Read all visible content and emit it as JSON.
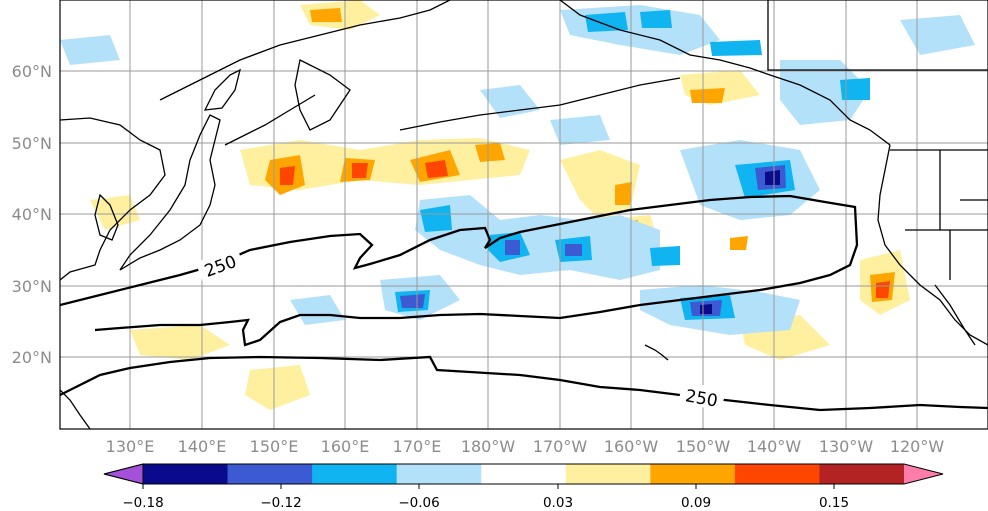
{
  "map": {
    "lon_labels": [
      "130°E",
      "140°E",
      "150°E",
      "160°E",
      "170°E",
      "180°W",
      "170°W",
      "160°W",
      "150°W",
      "140°W",
      "130°W",
      "120°W"
    ],
    "lat_labels": [
      "60°N",
      "50°N",
      "40°N",
      "30°N",
      "20°N"
    ],
    "contour_label_1": "250",
    "contour_label_2": "250",
    "contour_value": 250
  },
  "colorbar": {
    "colors": [
      "#a550d8",
      "#0a0a8c",
      "#3c5ad2",
      "#0fb4f0",
      "#b4e1fa",
      "#ffffff",
      "#fff0a0",
      "#ffa500",
      "#ff4600",
      "#b42323",
      "#ff7dab"
    ],
    "labels": [
      "−0.18",
      "−0.12",
      "−0.06",
      "0.03",
      "0.09",
      "0.15"
    ]
  }
}
